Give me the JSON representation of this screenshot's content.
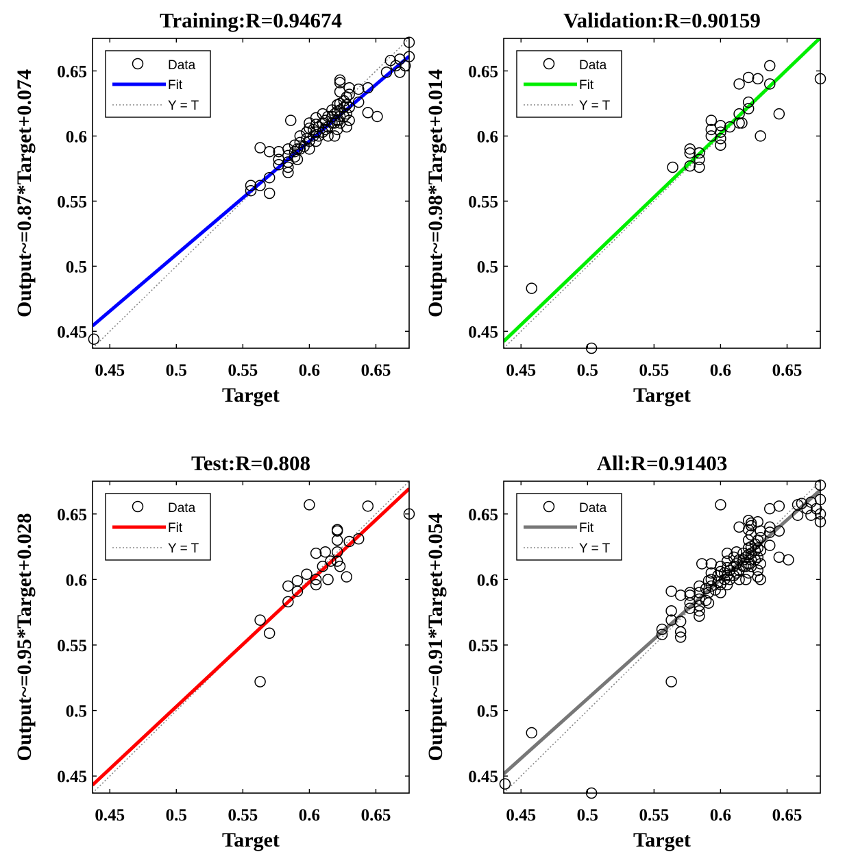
{
  "figure": "Regression plots",
  "chart_data": [
    {
      "type": "scatter",
      "title": "Training:R=0.94674",
      "xlabel": "Target",
      "ylabel": "Output~=0.87*Target+0.074",
      "xlim": [
        0.437,
        0.675
      ],
      "ylim": [
        0.437,
        0.675
      ],
      "xticks": [
        "0.45",
        "0.5",
        "0.55",
        "0.6",
        "0.65"
      ],
      "yticks": [
        "0.45",
        "0.5",
        "0.55",
        "0.6",
        "0.65"
      ],
      "fit": {
        "slope": 0.87,
        "intercept": 0.074,
        "color": "#0000ff"
      },
      "legend": [
        "Data",
        "Fit",
        "Y = T"
      ],
      "points": [
        [
          0.438,
          0.444
        ],
        [
          0.556,
          0.558
        ],
        [
          0.556,
          0.562
        ],
        [
          0.563,
          0.562
        ],
        [
          0.563,
          0.591
        ],
        [
          0.57,
          0.556
        ],
        [
          0.57,
          0.568
        ],
        [
          0.57,
          0.588
        ],
        [
          0.577,
          0.578
        ],
        [
          0.577,
          0.582
        ],
        [
          0.577,
          0.588
        ],
        [
          0.584,
          0.572
        ],
        [
          0.584,
          0.576
        ],
        [
          0.584,
          0.58
        ],
        [
          0.584,
          0.585
        ],
        [
          0.584,
          0.59
        ],
        [
          0.586,
          0.612
        ],
        [
          0.589,
          0.584
        ],
        [
          0.589,
          0.588
        ],
        [
          0.589,
          0.593
        ],
        [
          0.591,
          0.582
        ],
        [
          0.591,
          0.59
        ],
        [
          0.593,
          0.59
        ],
        [
          0.593,
          0.595
        ],
        [
          0.593,
          0.6
        ],
        [
          0.596,
          0.592
        ],
        [
          0.598,
          0.598
        ],
        [
          0.598,
          0.603
        ],
        [
          0.6,
          0.59
        ],
        [
          0.6,
          0.596
        ],
        [
          0.6,
          0.606
        ],
        [
          0.6,
          0.61
        ],
        [
          0.603,
          0.6
        ],
        [
          0.603,
          0.605
        ],
        [
          0.605,
          0.596
        ],
        [
          0.605,
          0.603
        ],
        [
          0.605,
          0.609
        ],
        [
          0.605,
          0.614
        ],
        [
          0.607,
          0.6
        ],
        [
          0.607,
          0.607
        ],
        [
          0.61,
          0.603
        ],
        [
          0.61,
          0.61
        ],
        [
          0.61,
          0.617
        ],
        [
          0.612,
          0.605
        ],
        [
          0.612,
          0.612
        ],
        [
          0.614,
          0.6
        ],
        [
          0.614,
          0.607
        ],
        [
          0.614,
          0.615
        ],
        [
          0.617,
          0.61
        ],
        [
          0.617,
          0.615
        ],
        [
          0.617,
          0.62
        ],
        [
          0.619,
          0.6
        ],
        [
          0.619,
          0.61
        ],
        [
          0.619,
          0.617
        ],
        [
          0.621,
          0.605
        ],
        [
          0.621,
          0.612
        ],
        [
          0.621,
          0.619
        ],
        [
          0.621,
          0.624
        ],
        [
          0.623,
          0.61
        ],
        [
          0.623,
          0.615
        ],
        [
          0.623,
          0.62
        ],
        [
          0.623,
          0.625
        ],
        [
          0.623,
          0.634
        ],
        [
          0.623,
          0.641
        ],
        [
          0.623,
          0.643
        ],
        [
          0.626,
          0.615
        ],
        [
          0.626,
          0.622
        ],
        [
          0.626,
          0.627
        ],
        [
          0.628,
          0.607
        ],
        [
          0.628,
          0.617
        ],
        [
          0.628,
          0.624
        ],
        [
          0.628,
          0.63
        ],
        [
          0.63,
          0.612
        ],
        [
          0.63,
          0.622
        ],
        [
          0.63,
          0.632
        ],
        [
          0.63,
          0.637
        ],
        [
          0.637,
          0.626
        ],
        [
          0.637,
          0.636
        ],
        [
          0.644,
          0.618
        ],
        [
          0.644,
          0.637
        ],
        [
          0.651,
          0.615
        ],
        [
          0.658,
          0.649
        ],
        [
          0.661,
          0.658
        ],
        [
          0.665,
          0.654
        ],
        [
          0.668,
          0.649
        ],
        [
          0.668,
          0.659
        ],
        [
          0.672,
          0.654
        ],
        [
          0.675,
          0.661
        ],
        [
          0.675,
          0.672
        ]
      ]
    },
    {
      "type": "scatter",
      "title": "Validation:R=0.90159",
      "xlabel": "Target",
      "ylabel": "Output~=0.98*Target+0.014",
      "xlim": [
        0.437,
        0.675
      ],
      "ylim": [
        0.437,
        0.675
      ],
      "xticks": [
        "0.45",
        "0.5",
        "0.55",
        "0.6",
        "0.65"
      ],
      "yticks": [
        "0.45",
        "0.5",
        "0.55",
        "0.6",
        "0.65"
      ],
      "fit": {
        "slope": 0.98,
        "intercept": 0.014,
        "color": "#00ee00"
      },
      "legend": [
        "Data",
        "Fit",
        "Y = T"
      ],
      "points": [
        [
          0.458,
          0.483
        ],
        [
          0.503,
          0.437
        ],
        [
          0.564,
          0.576
        ],
        [
          0.577,
          0.577
        ],
        [
          0.577,
          0.59
        ],
        [
          0.577,
          0.587
        ],
        [
          0.584,
          0.576
        ],
        [
          0.584,
          0.587
        ],
        [
          0.584,
          0.582
        ],
        [
          0.593,
          0.612
        ],
        [
          0.593,
          0.605
        ],
        [
          0.593,
          0.6
        ],
        [
          0.6,
          0.608
        ],
        [
          0.6,
          0.603
        ],
        [
          0.6,
          0.598
        ],
        [
          0.6,
          0.593
        ],
        [
          0.607,
          0.607
        ],
        [
          0.614,
          0.64
        ],
        [
          0.614,
          0.61
        ],
        [
          0.614,
          0.617
        ],
        [
          0.616,
          0.61
        ],
        [
          0.621,
          0.645
        ],
        [
          0.621,
          0.621
        ],
        [
          0.621,
          0.626
        ],
        [
          0.628,
          0.644
        ],
        [
          0.63,
          0.6
        ],
        [
          0.637,
          0.654
        ],
        [
          0.637,
          0.64
        ],
        [
          0.644,
          0.617
        ],
        [
          0.675,
          0.644
        ]
      ]
    },
    {
      "type": "scatter",
      "title": "Test:R=0.808",
      "xlabel": "Target",
      "ylabel": "Output~=0.95*Target+0.028",
      "xlim": [
        0.437,
        0.675
      ],
      "ylim": [
        0.437,
        0.675
      ],
      "xticks": [
        "0.45",
        "0.5",
        "0.55",
        "0.6",
        "0.65"
      ],
      "yticks": [
        "0.45",
        "0.5",
        "0.55",
        "0.6",
        "0.65"
      ],
      "fit": {
        "slope": 0.95,
        "intercept": 0.028,
        "color": "#ff0000"
      },
      "legend": [
        "Data",
        "Fit",
        "Y = T"
      ],
      "points": [
        [
          0.563,
          0.522
        ],
        [
          0.563,
          0.569
        ],
        [
          0.57,
          0.559
        ],
        [
          0.584,
          0.595
        ],
        [
          0.584,
          0.583
        ],
        [
          0.591,
          0.599
        ],
        [
          0.591,
          0.591
        ],
        [
          0.598,
          0.604
        ],
        [
          0.6,
          0.657
        ],
        [
          0.605,
          0.62
        ],
        [
          0.605,
          0.596
        ],
        [
          0.605,
          0.6
        ],
        [
          0.61,
          0.61
        ],
        [
          0.612,
          0.621
        ],
        [
          0.614,
          0.6
        ],
        [
          0.616,
          0.614
        ],
        [
          0.621,
          0.638
        ],
        [
          0.621,
          0.637
        ],
        [
          0.621,
          0.63
        ],
        [
          0.621,
          0.621
        ],
        [
          0.621,
          0.614
        ],
        [
          0.623,
          0.61
        ],
        [
          0.628,
          0.602
        ],
        [
          0.63,
          0.629
        ],
        [
          0.637,
          0.631
        ],
        [
          0.644,
          0.656
        ],
        [
          0.675,
          0.65
        ]
      ]
    },
    {
      "type": "scatter",
      "title": "All:R=0.91403",
      "xlabel": "Target",
      "ylabel": "Output~=0.91*Target+0.054",
      "xlim": [
        0.437,
        0.675
      ],
      "ylim": [
        0.437,
        0.675
      ],
      "xticks": [
        "0.45",
        "0.5",
        "0.55",
        "0.6",
        "0.65"
      ],
      "yticks": [
        "0.45",
        "0.5",
        "0.55",
        "0.6",
        "0.65"
      ],
      "fit": {
        "slope": 0.91,
        "intercept": 0.054,
        "color": "#777777"
      },
      "legend": [
        "Data",
        "Fit",
        "Y = T"
      ],
      "points": [
        [
          0.438,
          0.444
        ],
        [
          0.458,
          0.483
        ],
        [
          0.503,
          0.437
        ],
        [
          0.556,
          0.558
        ],
        [
          0.556,
          0.562
        ],
        [
          0.563,
          0.522
        ],
        [
          0.563,
          0.569
        ],
        [
          0.563,
          0.576
        ],
        [
          0.563,
          0.591
        ],
        [
          0.57,
          0.556
        ],
        [
          0.57,
          0.56
        ],
        [
          0.57,
          0.568
        ],
        [
          0.57,
          0.588
        ],
        [
          0.577,
          0.578
        ],
        [
          0.577,
          0.582
        ],
        [
          0.577,
          0.588
        ],
        [
          0.577,
          0.59
        ],
        [
          0.584,
          0.572
        ],
        [
          0.584,
          0.576
        ],
        [
          0.584,
          0.58
        ],
        [
          0.584,
          0.585
        ],
        [
          0.584,
          0.59
        ],
        [
          0.584,
          0.595
        ],
        [
          0.586,
          0.612
        ],
        [
          0.589,
          0.584
        ],
        [
          0.589,
          0.593
        ],
        [
          0.591,
          0.582
        ],
        [
          0.591,
          0.59
        ],
        [
          0.591,
          0.599
        ],
        [
          0.593,
          0.595
        ],
        [
          0.593,
          0.6
        ],
        [
          0.593,
          0.605
        ],
        [
          0.593,
          0.612
        ],
        [
          0.596,
          0.592
        ],
        [
          0.598,
          0.598
        ],
        [
          0.598,
          0.603
        ],
        [
          0.6,
          0.59
        ],
        [
          0.6,
          0.596
        ],
        [
          0.6,
          0.606
        ],
        [
          0.6,
          0.61
        ],
        [
          0.6,
          0.657
        ],
        [
          0.603,
          0.6
        ],
        [
          0.603,
          0.605
        ],
        [
          0.605,
          0.596
        ],
        [
          0.605,
          0.603
        ],
        [
          0.605,
          0.609
        ],
        [
          0.605,
          0.614
        ],
        [
          0.605,
          0.62
        ],
        [
          0.607,
          0.6
        ],
        [
          0.607,
          0.607
        ],
        [
          0.61,
          0.603
        ],
        [
          0.61,
          0.61
        ],
        [
          0.61,
          0.617
        ],
        [
          0.612,
          0.605
        ],
        [
          0.612,
          0.612
        ],
        [
          0.612,
          0.621
        ],
        [
          0.614,
          0.6
        ],
        [
          0.614,
          0.607
        ],
        [
          0.614,
          0.615
        ],
        [
          0.614,
          0.64
        ],
        [
          0.617,
          0.61
        ],
        [
          0.617,
          0.615
        ],
        [
          0.617,
          0.62
        ],
        [
          0.619,
          0.6
        ],
        [
          0.619,
          0.61
        ],
        [
          0.619,
          0.617
        ],
        [
          0.621,
          0.605
        ],
        [
          0.621,
          0.612
        ],
        [
          0.621,
          0.619
        ],
        [
          0.621,
          0.624
        ],
        [
          0.621,
          0.63
        ],
        [
          0.621,
          0.638
        ],
        [
          0.621,
          0.645
        ],
        [
          0.623,
          0.61
        ],
        [
          0.623,
          0.615
        ],
        [
          0.623,
          0.62
        ],
        [
          0.623,
          0.625
        ],
        [
          0.623,
          0.634
        ],
        [
          0.623,
          0.641
        ],
        [
          0.623,
          0.643
        ],
        [
          0.626,
          0.615
        ],
        [
          0.626,
          0.622
        ],
        [
          0.626,
          0.627
        ],
        [
          0.628,
          0.602
        ],
        [
          0.628,
          0.607
        ],
        [
          0.628,
          0.617
        ],
        [
          0.628,
          0.624
        ],
        [
          0.628,
          0.63
        ],
        [
          0.628,
          0.644
        ],
        [
          0.63,
          0.6
        ],
        [
          0.63,
          0.612
        ],
        [
          0.63,
          0.622
        ],
        [
          0.63,
          0.632
        ],
        [
          0.63,
          0.637
        ],
        [
          0.637,
          0.626
        ],
        [
          0.637,
          0.636
        ],
        [
          0.637,
          0.64
        ],
        [
          0.637,
          0.654
        ],
        [
          0.644,
          0.617
        ],
        [
          0.644,
          0.637
        ],
        [
          0.644,
          0.656
        ],
        [
          0.651,
          0.615
        ],
        [
          0.658,
          0.649
        ],
        [
          0.658,
          0.657
        ],
        [
          0.661,
          0.658
        ],
        [
          0.665,
          0.654
        ],
        [
          0.668,
          0.649
        ],
        [
          0.668,
          0.659
        ],
        [
          0.672,
          0.654
        ],
        [
          0.675,
          0.644
        ],
        [
          0.675,
          0.65
        ],
        [
          0.675,
          0.661
        ],
        [
          0.675,
          0.672
        ]
      ]
    }
  ]
}
